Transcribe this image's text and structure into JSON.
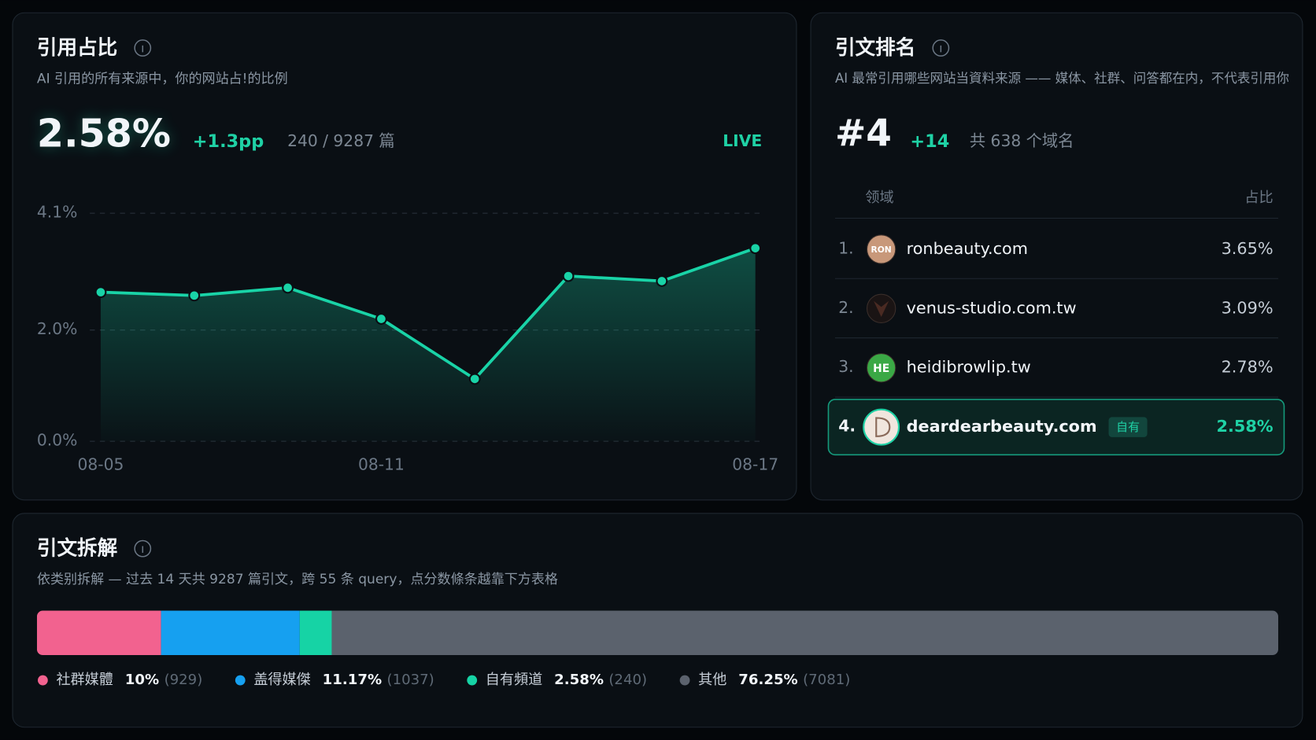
{
  "chart_data": [
    {
      "type": "line",
      "title": "引用占比",
      "subtitle": "AI 引用的所有来源中，你的网站占!的比例",
      "kpi": {
        "value": "2.58%",
        "change": "+1.3pp",
        "count": "240 / 9287 篇",
        "status": "LIVE"
      },
      "categories": [
        "08-05",
        null,
        null,
        "08-11",
        null,
        null,
        null,
        "08-17"
      ],
      "series": [
        {
          "color": "#19d3a7",
          "values": [
            2.68,
            2.62,
            2.76,
            2.2,
            1.12,
            2.97,
            2.88,
            3.47
          ]
        }
      ],
      "ylim": [
        0,
        4.1
      ],
      "yticks": [
        {
          "value": 0,
          "label": "0.0%"
        },
        {
          "value": 2,
          "label": "2.0%"
        },
        {
          "value": 4.1,
          "label": "4.1%"
        }
      ],
      "grid": true
    },
    {
      "type": "stacked-bar",
      "title": "引文拆解",
      "subtitle": "依类别拆解 — 过去 14 天共 9287 篇引文，跨 55 条 query，点分数條条越靠下方表格",
      "xlim": [
        0,
        100
      ],
      "series": [
        {
          "name": "社群媒體",
          "color": "#f2628f",
          "values": [
            10
          ],
          "value_labels": [
            "10%"
          ],
          "count_label": "(929)"
        },
        {
          "name": "盖得媒傑",
          "color": "#16a0f0",
          "values": [
            11.17
          ],
          "value_labels": [
            "11.17%"
          ],
          "count_label": "(1037)"
        },
        {
          "name": "自有頻道",
          "color": "#16d3a5",
          "values": [
            2.58
          ],
          "value_labels": [
            "2.58%"
          ],
          "count_label": "(240)"
        },
        {
          "name": "其他",
          "color": "#5b626d",
          "values": [
            76.25
          ],
          "value_labels": [
            "76.25%"
          ],
          "count_label": "(7081)"
        }
      ]
    }
  ],
  "ranking": {
    "title": "引文排名",
    "subtitle": "AI 最常引用哪些网站当資料来源 —— 媒体、社群、问答都在内，不代表引用你",
    "rank": "#4",
    "rank_change": "+14",
    "total": "共 638 个域名",
    "columns": [
      "领域",
      "占比"
    ],
    "rows": [
      {
        "rank": "1.",
        "icon": "RON",
        "domain": "ronbeauty.com",
        "share": "3.65%"
      },
      {
        "rank": "2.",
        "domain": "venus-studio.com.tw",
        "share": "3.09%"
      },
      {
        "rank": "3.",
        "icon": "HE",
        "domain": "heidibrowlip.tw",
        "share": "2.78%"
      },
      {
        "rank": "4.",
        "domain": "deardearbeauty.com",
        "share": "2.58%",
        "tag": "自有"
      }
    ]
  }
}
